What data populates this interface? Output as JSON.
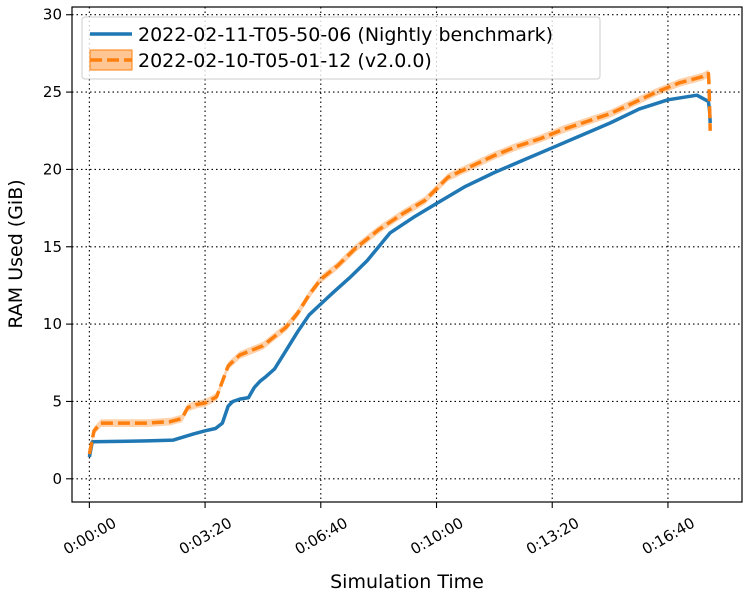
{
  "chart_data": {
    "type": "line",
    "xlabel": "Simulation Time",
    "ylabel": "RAM Used (GiB)",
    "xlim": [
      -30,
      1128
    ],
    "ylim": [
      -1.5,
      30.5
    ],
    "grid": true,
    "legend_position": "top-left",
    "x_ticks": [
      {
        "value": 0,
        "label": "0:00:00"
      },
      {
        "value": 200,
        "label": "0:03:20"
      },
      {
        "value": 400,
        "label": "0:06:40"
      },
      {
        "value": 600,
        "label": "0:10:00"
      },
      {
        "value": 800,
        "label": "0:13:20"
      },
      {
        "value": 1000,
        "label": "0:16:40"
      }
    ],
    "y_ticks": [
      0,
      5,
      10,
      15,
      20,
      25,
      30
    ],
    "series": [
      {
        "name": "2022-02-11-T05-50-06 (Nightly benchmark)",
        "color": "#1f77b4",
        "style": "solid",
        "x": [
          0,
          5,
          50,
          100,
          145,
          180,
          200,
          218,
          230,
          240,
          248,
          260,
          275,
          285,
          295,
          305,
          320,
          340,
          360,
          380,
          400,
          420,
          450,
          480,
          520,
          560,
          600,
          650,
          700,
          750,
          800,
          850,
          900,
          950,
          1000,
          1050,
          1070,
          1072,
          1073
        ],
        "y": [
          1.4,
          2.4,
          2.42,
          2.45,
          2.5,
          2.9,
          3.1,
          3.25,
          3.6,
          4.7,
          5.0,
          5.15,
          5.25,
          5.9,
          6.3,
          6.6,
          7.1,
          8.3,
          9.5,
          10.6,
          11.3,
          12.0,
          13.0,
          14.1,
          15.9,
          16.9,
          17.8,
          18.9,
          19.8,
          20.6,
          21.4,
          22.2,
          23.0,
          23.9,
          24.5,
          24.8,
          24.4,
          23.8,
          23.0
        ]
      },
      {
        "name": "2022-02-10-T05-01-12 (v2.0.0)",
        "color": "#ff7f0e",
        "style": "dashed",
        "x": [
          0,
          8,
          20,
          60,
          100,
          140,
          160,
          170,
          185,
          200,
          220,
          240,
          260,
          280,
          300,
          320,
          340,
          360,
          380,
          400,
          430,
          460,
          500,
          540,
          580,
          620,
          660,
          700,
          740,
          780,
          820,
          860,
          900,
          940,
          980,
          1020,
          1060,
          1070,
          1071,
          1072,
          1073
        ],
        "y": [
          1.6,
          3.1,
          3.6,
          3.6,
          3.6,
          3.7,
          3.9,
          4.6,
          4.8,
          4.9,
          5.3,
          7.3,
          8.0,
          8.3,
          8.6,
          9.2,
          9.8,
          10.7,
          11.9,
          12.9,
          13.8,
          14.9,
          16.1,
          17.1,
          18.0,
          19.5,
          20.2,
          20.9,
          21.5,
          22.0,
          22.6,
          23.1,
          23.6,
          24.3,
          25.0,
          25.6,
          26.0,
          26.2,
          25.5,
          24.0,
          22.5
        ]
      }
    ]
  }
}
